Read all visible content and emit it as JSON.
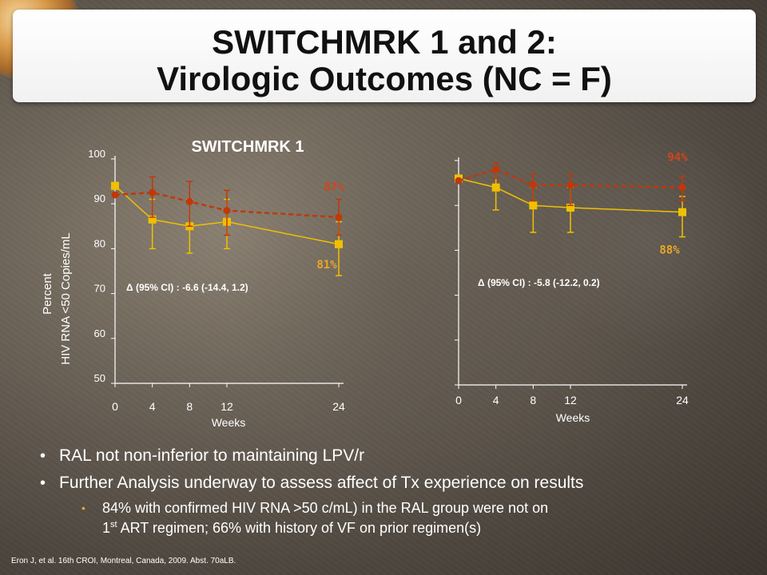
{
  "slide": {
    "title_line1": "SWITCHMRK 1 and 2:",
    "title_line2": "Virologic Outcomes (NC = F)"
  },
  "colors": {
    "ral_series": "#f0c000",
    "lpv_series": "#c0380a",
    "ral_label": "#e9a825",
    "lpv_label": "#d2451c",
    "axis": "#ffffff"
  },
  "chart_data": [
    {
      "type": "line",
      "title": "SWITCHMRK 1",
      "ylabel_line1": "Percent",
      "ylabel_line2": "HIV RNA <50 Copies/mL",
      "xlabel": "Weeks",
      "x": [
        0,
        4,
        8,
        12,
        24
      ],
      "xlim": [
        0,
        24
      ],
      "ylim": [
        50,
        100
      ],
      "yticks": [
        "50",
        "60",
        "70",
        "80",
        "90",
        "100"
      ],
      "xticks": [
        "0",
        "4",
        "8",
        "12",
        "24"
      ],
      "series": [
        {
          "key": "ral",
          "values": [
            94,
            86.5,
            85,
            86,
            81
          ],
          "err_low": [
            null,
            80,
            79,
            80,
            74
          ],
          "err_high": [
            null,
            91,
            91,
            91,
            86
          ],
          "end_label": "81%",
          "style": "solid",
          "marker": "square"
        },
        {
          "key": "lpv",
          "values": [
            92,
            92.5,
            90.5,
            88.5,
            87
          ],
          "err_low": [
            null,
            87,
            85,
            83,
            83
          ],
          "err_high": [
            null,
            96,
            95,
            93,
            91
          ],
          "end_label": "87%",
          "style": "dashed",
          "marker": "circle"
        }
      ],
      "annotation": "Δ (95% CI) :  -6.6 (-14.4, 1.2)"
    },
    {
      "type": "line",
      "title": "",
      "xlabel": "Weeks",
      "x": [
        0,
        4,
        8,
        12,
        24
      ],
      "xlim": [
        0,
        24
      ],
      "ylim": [
        50,
        100
      ],
      "yticks": [
        "",
        "",
        "",
        "",
        "",
        ""
      ],
      "xticks": [
        "0",
        "4",
        "8",
        "12",
        "24"
      ],
      "series": [
        {
          "key": "ral",
          "values": [
            96,
            94,
            90,
            89.5,
            88.5
          ],
          "err_low": [
            null,
            89,
            84,
            84,
            83
          ],
          "err_high": [
            null,
            98,
            94,
            94,
            92
          ],
          "end_label": "88%",
          "style": "solid",
          "marker": "square"
        },
        {
          "key": "lpv",
          "values": [
            95.5,
            98,
            94.5,
            94.5,
            94
          ],
          "err_low": [
            null,
            96,
            91,
            90,
            91
          ],
          "err_high": [
            null,
            99.5,
            97,
            97,
            96.5
          ],
          "end_label": "94%",
          "style": "dashed",
          "marker": "circle"
        }
      ],
      "annotation": "Δ  (95% CI) :  -5.8 (-12.2, 0.2)"
    }
  ],
  "bullets": [
    "RAL not non-inferior to maintaining LPV/r",
    "Further Analysis underway to assess affect of Tx experience on results"
  ],
  "sub_bullet": {
    "line1": "84% with confirmed HIV RNA >50 c/mL) in the RAL group were not on",
    "line2_pre": "1",
    "line2_sup": "st",
    "line2_post": " ART regimen; 66% with history of VF on prior regimen(s)"
  },
  "citation": "Eron J, et al. 16th CROI, Montreal, Canada, 2009. Abst. 70aLB."
}
